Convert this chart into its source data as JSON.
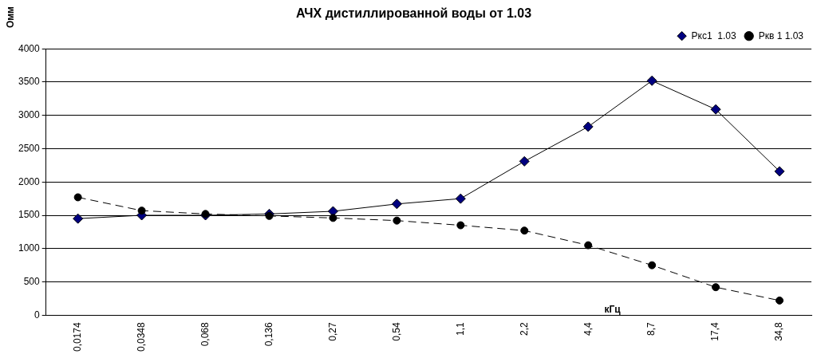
{
  "chart_data": {
    "type": "line",
    "title": "АЧХ дистиллированной воды от 1.03",
    "ylabel": "Омм",
    "xlabel": "кГц",
    "categories": [
      "0,0174",
      "0,0348",
      "0,068",
      "0,136",
      "0,27",
      "0,54",
      "1,1",
      "2,2",
      "4,4",
      "8,7",
      "17,4",
      "34,8"
    ],
    "series": [
      {
        "name": "Ркс1  1.03",
        "color": "#000080",
        "marker": "diamond",
        "line_style": "solid",
        "values": [
          1450,
          1500,
          1500,
          1520,
          1560,
          1670,
          1750,
          2310,
          2830,
          3520,
          3090,
          2160
        ]
      },
      {
        "name": "Ркв 1 1.03",
        "color": "#000000",
        "marker": "circle",
        "line_style": "dashed",
        "values": [
          1770,
          1570,
          1520,
          1490,
          1460,
          1420,
          1350,
          1270,
          1050,
          750,
          420,
          220
        ]
      }
    ],
    "ylim": [
      0,
      4000
    ],
    "yticks": [
      0,
      500,
      1000,
      1500,
      2000,
      2500,
      3000,
      3500,
      4000
    ],
    "grid": "y",
    "legend": "top right"
  }
}
